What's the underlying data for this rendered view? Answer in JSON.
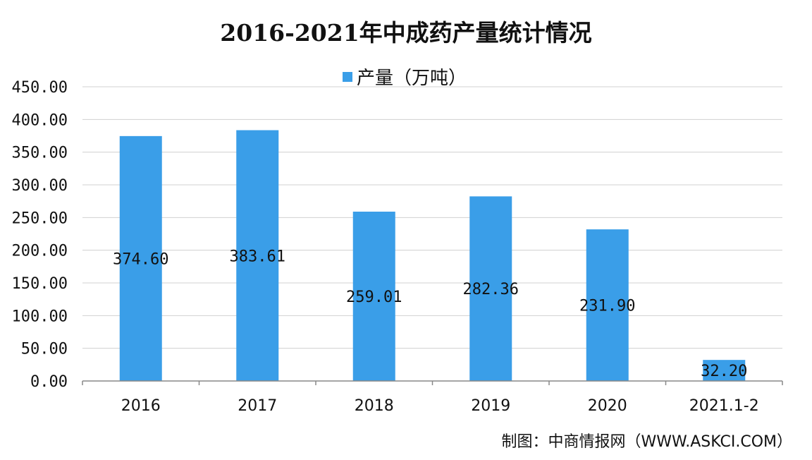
{
  "chart_data": {
    "type": "bar",
    "title": "2016-2021年中成药产量统计情况",
    "categories": [
      "2016",
      "2017",
      "2018",
      "2019",
      "2020",
      "2021.1-2"
    ],
    "series": [
      {
        "name": "产量（万吨）",
        "values": [
          374.6,
          383.61,
          259.01,
          282.36,
          231.9,
          32.2
        ],
        "labels": [
          "374.60",
          "383.61",
          "259.01",
          "282.36",
          "231.90",
          "32.20"
        ]
      }
    ],
    "yticks": [
      "0.00",
      "50.00",
      "100.00",
      "150.00",
      "200.00",
      "250.00",
      "300.00",
      "350.00",
      "400.00",
      "450.00"
    ],
    "ylim": [
      0,
      450
    ],
    "grid": true,
    "legend_position": "top-center",
    "bar_color": "#3a9ee8",
    "grid_color": "#d0d0d0"
  },
  "source_note": "制图：中商情报网（WWW.ASKCI.COM）"
}
